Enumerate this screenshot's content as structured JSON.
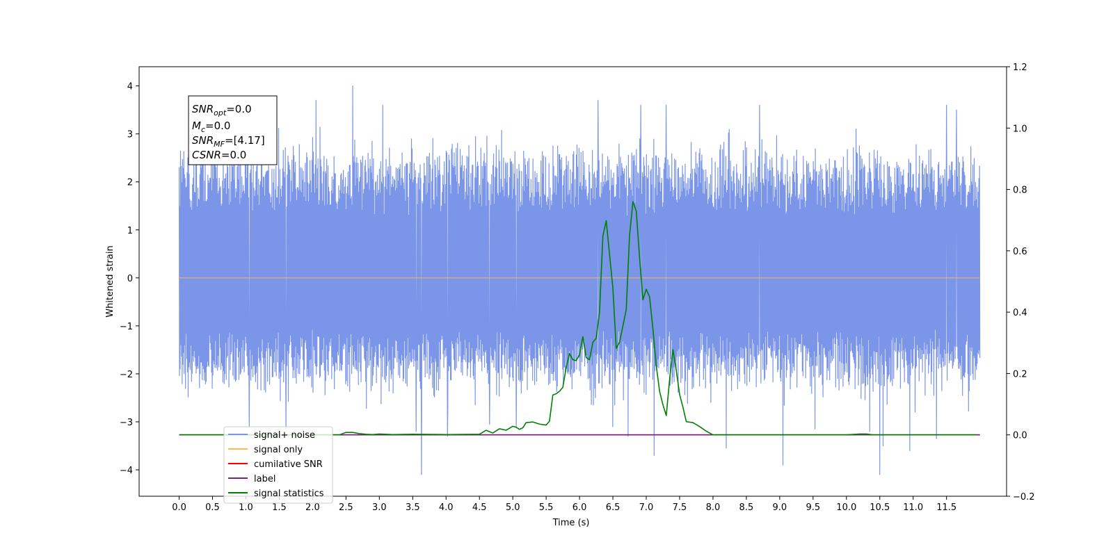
{
  "chart_data": {
    "type": "line",
    "title": "",
    "xlabel": "Time (s)",
    "ylabel": "Whitened strain",
    "xlim": [
      -0.6,
      12.4
    ],
    "ylim": [
      -4.55,
      4.4
    ],
    "y2lim": [
      -0.2,
      1.2
    ],
    "x_ticks": [
      0.0,
      0.5,
      1.0,
      1.5,
      2.0,
      2.5,
      3.0,
      3.5,
      4.0,
      4.5,
      5.0,
      5.5,
      6.0,
      6.5,
      7.0,
      7.5,
      8.0,
      8.5,
      9.0,
      9.5,
      10.0,
      10.5,
      11.0,
      11.5
    ],
    "x_tick_labels": [
      "0.0",
      "0.5",
      "1.0",
      "1.5",
      "2.0",
      "2.5",
      "3.0",
      "3.5",
      "4.0",
      "4.5",
      "5.0",
      "5.5",
      "6.0",
      "6.5",
      "7.0",
      "7.5",
      "8.0",
      "8.5",
      "9.0",
      "9.5",
      "10.0",
      "10.5",
      "11.0",
      "11.5"
    ],
    "y_ticks": [
      -4,
      -3,
      -2,
      -1,
      0,
      1,
      2,
      3,
      4
    ],
    "y_tick_labels": [
      "−4",
      "−3",
      "−2",
      "−1",
      "0",
      "1",
      "2",
      "3",
      "4"
    ],
    "y2_ticks": [
      -0.2,
      0.0,
      0.2,
      0.4,
      0.6,
      0.8,
      1.0,
      1.2
    ],
    "y2_tick_labels": [
      "−0.2",
      "0.0",
      "0.2",
      "0.4",
      "0.6",
      "0.8",
      "1.0",
      "1.2"
    ],
    "grid": false,
    "legend_position": "bottom-left",
    "noise": {
      "x_start": 0.0,
      "x_end": 12.0,
      "samples": 2400,
      "typical_lower": -1.9,
      "typical_upper": 2.3,
      "spikes": [
        [
          1.05,
          -3.1
        ],
        [
          1.6,
          -3.15
        ],
        [
          2.05,
          3.7
        ],
        [
          2.6,
          4.0
        ],
        [
          3.05,
          3.6
        ],
        [
          3.55,
          -3.2
        ],
        [
          3.63,
          -4.1
        ],
        [
          4.02,
          -3.3
        ],
        [
          4.65,
          -3.05
        ],
        [
          5.05,
          -3.1
        ],
        [
          6.28,
          3.7
        ],
        [
          6.5,
          -3.1
        ],
        [
          6.73,
          -3.3
        ],
        [
          6.92,
          3.6
        ],
        [
          7.12,
          -3.7
        ],
        [
          7.3,
          3.6
        ],
        [
          8.2,
          -3.55
        ],
        [
          8.7,
          3.6
        ],
        [
          9.05,
          -3.9
        ],
        [
          9.53,
          -3.15
        ],
        [
          10.35,
          -3.2
        ],
        [
          10.5,
          -4.1
        ],
        [
          10.55,
          -3.5
        ],
        [
          10.95,
          -3.6
        ],
        [
          11.35,
          -3.35
        ],
        [
          11.5,
          3.6
        ],
        [
          11.65,
          3.5
        ]
      ]
    },
    "series": [
      {
        "name": "signal+ noise",
        "color": "#7b95e8",
        "axis": "left"
      },
      {
        "name": "signal only",
        "color": "#ffb84d",
        "axis": "left",
        "x": [
          0.0,
          12.0
        ],
        "y": [
          0.0,
          0.0
        ]
      },
      {
        "name": "cumilative SNR",
        "color": "#ff0000",
        "axis": "right",
        "x": [
          0.0,
          12.0
        ],
        "y": [
          0.0,
          0.0
        ]
      },
      {
        "name": "label",
        "color": "#7b1f7f",
        "axis": "right",
        "x": [
          0.0,
          12.0
        ],
        "y": [
          0.0,
          0.0
        ]
      },
      {
        "name": "signal statistics",
        "color": "#008000",
        "axis": "right",
        "x": [
          0.0,
          2.4,
          2.5,
          2.6,
          2.7,
          2.8,
          2.9,
          3.0,
          3.2,
          3.5,
          4.0,
          4.5,
          4.6,
          4.7,
          4.8,
          4.9,
          5.0,
          5.05,
          5.1,
          5.15,
          5.2,
          5.3,
          5.4,
          5.5,
          5.55,
          5.6,
          5.65,
          5.7,
          5.75,
          5.8,
          5.85,
          5.9,
          5.95,
          6.0,
          6.05,
          6.1,
          6.15,
          6.2,
          6.25,
          6.3,
          6.35,
          6.4,
          6.5,
          6.55,
          6.6,
          6.7,
          6.75,
          6.8,
          6.85,
          6.9,
          6.95,
          7.0,
          7.05,
          7.1,
          7.15,
          7.2,
          7.25,
          7.3,
          7.35,
          7.4,
          7.45,
          7.5,
          7.55,
          7.6,
          7.7,
          7.8,
          7.9,
          8.0,
          8.1,
          8.15,
          9.0,
          10.0,
          10.2,
          10.3,
          10.4,
          11.0,
          11.95
        ],
        "y": [
          0.0,
          0.0,
          0.008,
          0.008,
          0.004,
          0.002,
          0.001,
          0.003,
          0.001,
          0.002,
          0.001,
          0.002,
          0.015,
          0.006,
          0.02,
          0.015,
          0.028,
          0.025,
          0.018,
          0.023,
          0.04,
          0.042,
          0.035,
          0.032,
          0.045,
          0.13,
          0.134,
          0.142,
          0.155,
          0.22,
          0.265,
          0.245,
          0.242,
          0.261,
          0.32,
          0.252,
          0.245,
          0.302,
          0.315,
          0.4,
          0.648,
          0.698,
          0.478,
          0.282,
          0.302,
          0.408,
          0.65,
          0.76,
          0.73,
          0.578,
          0.44,
          0.475,
          0.45,
          0.345,
          0.225,
          0.142,
          0.098,
          0.063,
          0.18,
          0.278,
          0.21,
          0.132,
          0.09,
          0.043,
          0.04,
          0.027,
          0.012,
          0.0,
          0.0,
          0.0,
          0.0,
          0.0,
          0.003,
          0.003,
          0.0,
          0.0,
          0.0
        ]
      }
    ],
    "annotation": {
      "lines": [
        {
          "main": "SNR",
          "sub": "opt",
          "value": "=0.0"
        },
        {
          "main": "M",
          "sub": "c",
          "value": "=0.0"
        },
        {
          "main": "SNR",
          "sub": "MF",
          "value": "=[4.17]"
        },
        {
          "main": "CSNR",
          "sub": "",
          "value": "=0.0"
        }
      ]
    }
  }
}
